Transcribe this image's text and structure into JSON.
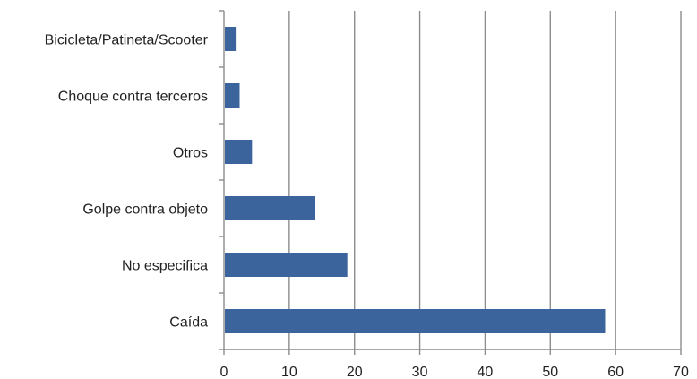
{
  "chart_data": {
    "type": "bar",
    "orientation": "horizontal",
    "title": "",
    "xlabel": "",
    "ylabel": "",
    "categories": [
      "Bicicleta/Patineta/Scooter",
      "Choque contra terceros",
      "Otros",
      "Golpe contra objeto",
      "No especifica",
      "Caída"
    ],
    "values": [
      1.8,
      2.4,
      4.3,
      14.0,
      18.9,
      58.4
    ],
    "xlim": [
      0,
      70
    ],
    "xticks": [
      "0",
      "10",
      "20",
      "30",
      "40",
      "50",
      "60",
      "70"
    ],
    "grid": "vertical",
    "legend": "none",
    "bar_color": "#3a649b",
    "grid_color": "#8c8c8c",
    "axis_color": "#8c8c8c",
    "text_color": "#222222"
  }
}
